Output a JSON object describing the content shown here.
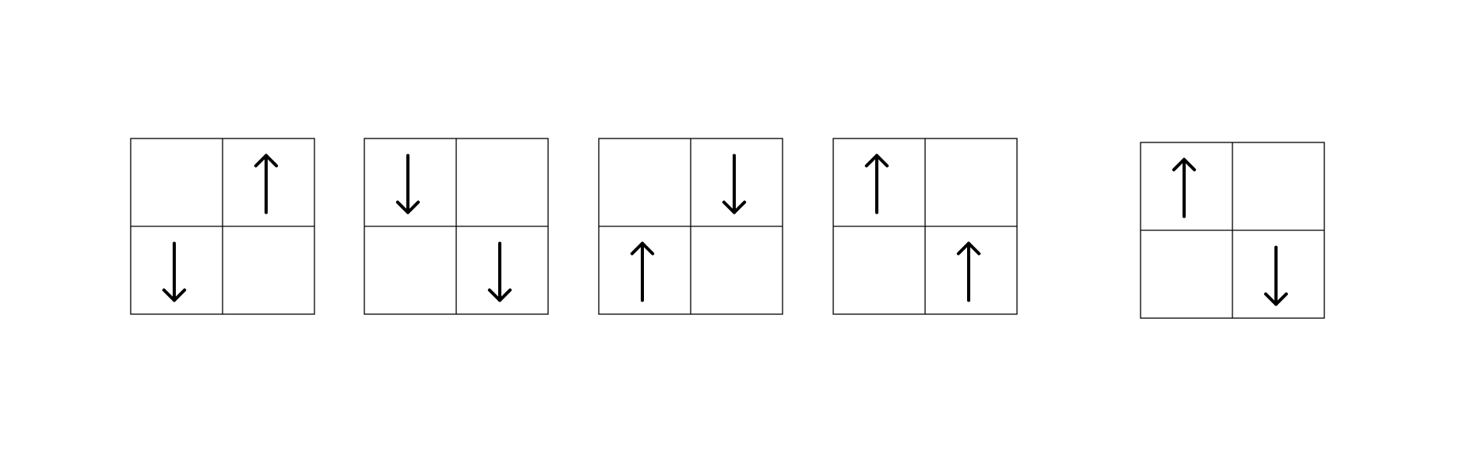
{
  "colors": {
    "line": "#000000",
    "background": "#ffffff"
  },
  "panels": [
    {
      "label": "",
      "cells": [
        [
          "empty",
          "arrow-up"
        ],
        [
          "arrow-down",
          "empty"
        ]
      ]
    },
    {
      "label": "",
      "cells": [
        [
          "arrow-down",
          "empty"
        ],
        [
          "empty",
          "arrow-down"
        ]
      ]
    },
    {
      "label": "",
      "cells": [
        [
          "empty",
          "arrow-down"
        ],
        [
          "arrow-up",
          "empty"
        ]
      ]
    },
    {
      "label": "",
      "cells": [
        [
          "arrow-up",
          "empty"
        ],
        [
          "empty",
          "arrow-up"
        ]
      ]
    },
    {
      "label": "",
      "cells": [
        [
          "arrow-up",
          "empty"
        ],
        [
          "empty",
          "arrow-down"
        ]
      ]
    }
  ]
}
